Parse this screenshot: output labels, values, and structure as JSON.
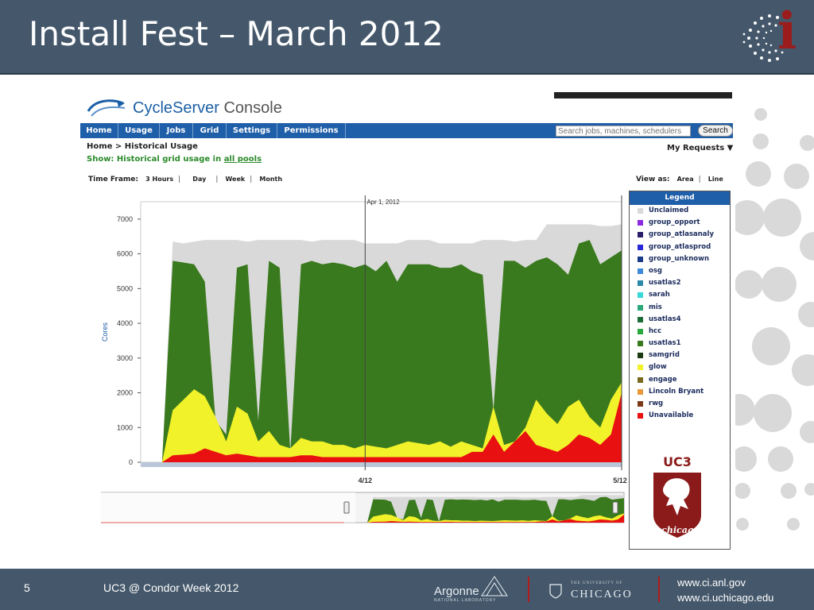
{
  "slide": {
    "title": "Install Fest – March 2012",
    "number": "5",
    "footer_caption": "UC3 @ Condor Week 2012",
    "footer_urls": [
      "www.ci.anl.gov",
      "www.ci.uchicago.edu"
    ],
    "argonne_label": "Argonne",
    "argonne_sub": "NATIONAL LABORATORY",
    "uchicago_label": "CHICAGO",
    "uchicago_small": "THE UNIVERSITY OF",
    "ci_logo_letter": "i"
  },
  "app": {
    "logo_text_bold": "CycleServer",
    "logo_text_light": " Console",
    "nav": [
      "Home",
      "Usage",
      "Jobs",
      "Grid",
      "Settings",
      "Permissions"
    ],
    "search_placeholder": "Search jobs, machines, schedulers",
    "search_button": "Search",
    "breadcrumb": "Home > Historical Usage",
    "my_requests": "My Requests ▼",
    "show_prefix": "Show: Historical grid usage in ",
    "show_link": "all pools",
    "timeframe_label": "Time Frame:",
    "timeframe_options": [
      "3 Hours",
      "Day",
      "Week",
      "Month"
    ],
    "viewas_label": "View as:",
    "viewas_options": [
      "Area",
      "Line"
    ]
  },
  "chart_data": {
    "type": "area",
    "title": "",
    "ylabel": "Cores",
    "ylim": [
      0,
      7500
    ],
    "yticks": [
      0,
      1000,
      2000,
      3000,
      4000,
      5000,
      6000,
      7000
    ],
    "xticks": [
      "4/12",
      "5/12"
    ],
    "annotation": "Apr 1, 2012",
    "legend_title": "Legend",
    "legend": [
      {
        "name": "Unclaimed",
        "color": "#d9d9d9"
      },
      {
        "name": "group_opport",
        "color": "#8a2be2"
      },
      {
        "name": "group_atlasanaly",
        "color": "#2a1f6b"
      },
      {
        "name": "group_atlasprod",
        "color": "#2828d8"
      },
      {
        "name": "group_unknown",
        "color": "#1a3a8a"
      },
      {
        "name": "osg",
        "color": "#3c8ad8"
      },
      {
        "name": "usatlas2",
        "color": "#2c8aa8"
      },
      {
        "name": "sarah",
        "color": "#38d8d8"
      },
      {
        "name": "mis",
        "color": "#2aa87a"
      },
      {
        "name": "usatlas4",
        "color": "#1e6b3a"
      },
      {
        "name": "hcc",
        "color": "#2aa840"
      },
      {
        "name": "usatlas1",
        "color": "#3a7a1e"
      },
      {
        "name": "samgrid",
        "color": "#1a3a12"
      },
      {
        "name": "glow",
        "color": "#f2f22a"
      },
      {
        "name": "engage",
        "color": "#7a6a20"
      },
      {
        "name": "Lincoln Bryant",
        "color": "#e89a3a"
      },
      {
        "name": "rwg",
        "color": "#7a3a1a"
      },
      {
        "name": "Unavailable",
        "color": "#e81010"
      }
    ],
    "series": [
      {
        "name": "Unclaimed",
        "total": [
          0,
          0,
          0,
          6350,
          6300,
          6350,
          6400,
          6400,
          6400,
          6400,
          6350,
          6400,
          6400,
          6400,
          6400,
          6400,
          6350,
          6400,
          6400,
          6400,
          6400,
          6300,
          6300,
          6300,
          6300,
          6400,
          6400,
          6400,
          6300,
          6300,
          6300,
          6300,
          6400,
          6400,
          6400,
          6350,
          6400,
          6400,
          6850,
          6850,
          6850,
          6850,
          6850,
          6800,
          6800,
          6850
        ]
      },
      {
        "name": "usatlas1",
        "total": [
          0,
          0,
          0,
          5800,
          5750,
          5700,
          5200,
          1200,
          800,
          5600,
          5700,
          1200,
          5800,
          5600,
          300,
          5700,
          5800,
          5700,
          5750,
          5700,
          5600,
          5700,
          5500,
          5800,
          5200,
          5700,
          5700,
          5700,
          5600,
          5600,
          5700,
          5500,
          5400,
          1500,
          5800,
          5800,
          5600,
          5800,
          5900,
          5700,
          5400,
          6300,
          6400,
          5700,
          5900,
          6100
        ]
      },
      {
        "name": "engage",
        "total": [
          0,
          0,
          0,
          1200,
          1500,
          1900,
          1100,
          900,
          500,
          1400,
          1200,
          500,
          800,
          400,
          300,
          600,
          500,
          500,
          400,
          400,
          300,
          400,
          350,
          300,
          400,
          500,
          450,
          400,
          500,
          350,
          500,
          400,
          300,
          500,
          400,
          400,
          600,
          1000,
          700,
          600,
          900,
          1000,
          800,
          600,
          1200,
          2100
        ]
      },
      {
        "name": "glow",
        "total": [
          0,
          0,
          0,
          1500,
          1800,
          2100,
          1900,
          1300,
          600,
          1600,
          1400,
          600,
          900,
          500,
          400,
          700,
          600,
          600,
          500,
          500,
          400,
          500,
          450,
          400,
          500,
          600,
          550,
          500,
          600,
          450,
          600,
          500,
          400,
          1600,
          500,
          600,
          1000,
          1800,
          1400,
          1100,
          1600,
          1800,
          1300,
          1000,
          1800,
          2300
        ]
      },
      {
        "name": "Unavailable",
        "total": [
          0,
          0,
          0,
          200,
          220,
          250,
          400,
          300,
          200,
          250,
          200,
          150,
          150,
          150,
          150,
          200,
          200,
          150,
          150,
          150,
          150,
          150,
          150,
          150,
          150,
          150,
          150,
          150,
          150,
          150,
          150,
          300,
          300,
          800,
          300,
          600,
          900,
          500,
          400,
          300,
          500,
          800,
          700,
          500,
          800,
          2000
        ]
      }
    ]
  }
}
